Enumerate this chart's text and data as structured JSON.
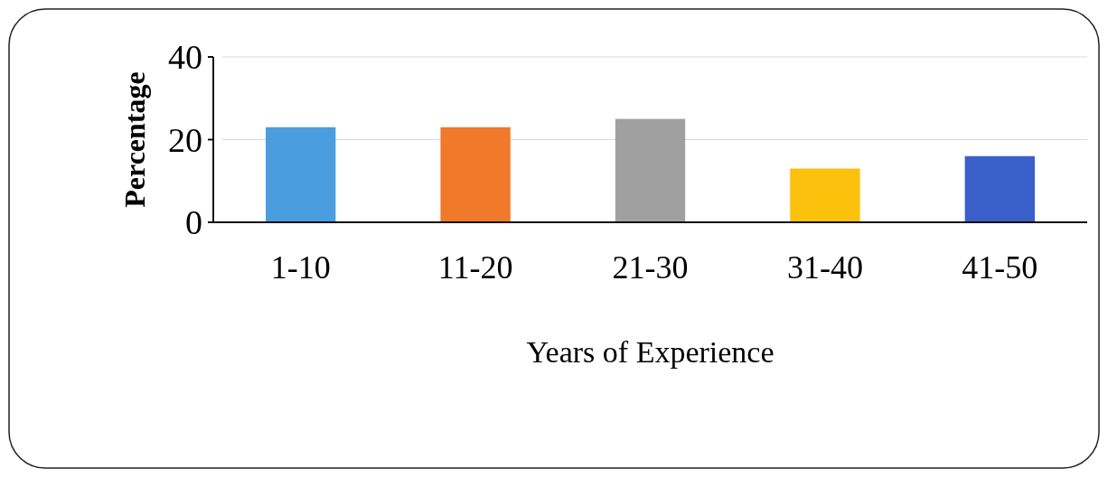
{
  "chart_data": {
    "type": "bar",
    "xlabel": "Years of Experience",
    "ylabel": "Percentage",
    "categories": [
      "1-10",
      "11-20",
      "21-30",
      "31-40",
      "41-50"
    ],
    "values": [
      23,
      23,
      25,
      13,
      16
    ],
    "colors": [
      "#4a9ee0",
      "#f07a2a",
      "#a0a0a0",
      "#fcc10c",
      "#3a5fc8"
    ],
    "ylim": [
      0,
      40
    ],
    "yticks": [
      0,
      20,
      40
    ],
    "grid": "y"
  }
}
